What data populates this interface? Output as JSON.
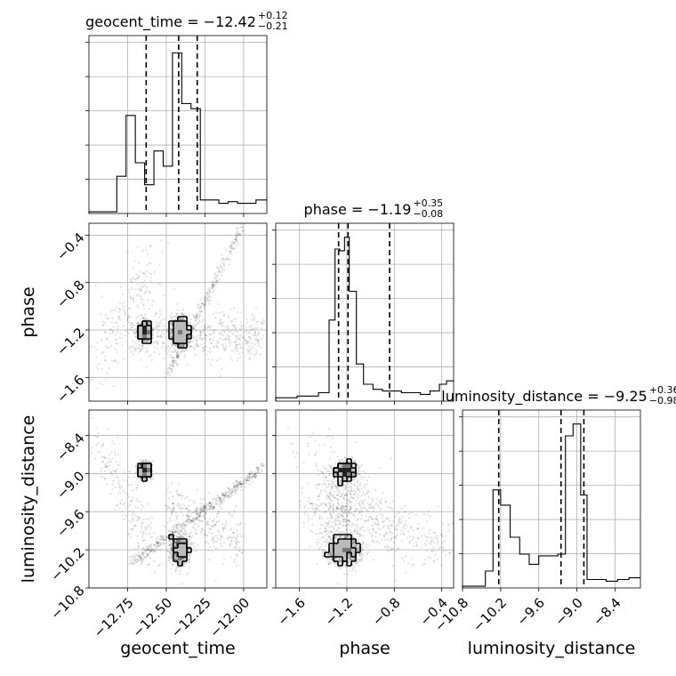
{
  "chart_data": {
    "type": "corner",
    "parameters": [
      "geocent_time",
      "phase",
      "luminosity_distance"
    ],
    "axis_labels": [
      "geocent_time",
      "phase",
      "luminosity_distance"
    ],
    "titles": [
      {
        "param": "geocent_time",
        "text": "geocent_time = −12.42",
        "plus": "+0.12",
        "minus": "−0.21"
      },
      {
        "param": "phase",
        "text": "phase = −1.19",
        "plus": "+0.35",
        "minus": "−0.08"
      },
      {
        "param": "luminosity_distance",
        "text": "luminosity_distance = −9.25",
        "plus": "+0.36",
        "minus": "−0.98"
      }
    ],
    "ranges": {
      "geocent_time": [
        -13.0,
        -11.85
      ],
      "phase": [
        -1.8,
        -0.3
      ],
      "luminosity_distance": [
        -10.8,
        -8.0
      ]
    },
    "ticks": {
      "geocent_time": [
        -12.75,
        -12.5,
        -12.25,
        -12.0
      ],
      "phase": [
        -1.6,
        -1.2,
        -0.8,
        -0.4
      ],
      "luminosity_distance": [
        -10.8,
        -10.2,
        -9.6,
        -9.0,
        -8.4
      ]
    },
    "tick_labels": {
      "geocent_time": [
        "−12.75",
        "−12.50",
        "−12.25",
        "−12.00"
      ],
      "phase": [
        "−1.6",
        "−1.2",
        "−0.8",
        "−0.4"
      ],
      "luminosity_distance": [
        "−10.8",
        "−10.2",
        "−9.6",
        "−9.0",
        "−8.4"
      ]
    },
    "quantiles": {
      "geocent_time": [
        -12.63,
        -12.42,
        -12.3
      ],
      "phase": [
        -1.27,
        -1.19,
        -0.84
      ],
      "luminosity_distance": [
        -10.23,
        -9.25,
        -8.89
      ]
    },
    "histograms": {
      "geocent_time": {
        "edges": [
          -13.0,
          -12.94,
          -12.88,
          -12.82,
          -12.76,
          -12.7,
          -12.64,
          -12.58,
          -12.52,
          -12.46,
          -12.4,
          -12.34,
          -12.28,
          -12.22,
          -12.16,
          -12.1,
          -12.04,
          -11.98,
          -11.92,
          -11.85
        ],
        "counts": [
          0.01,
          0.01,
          0.01,
          0.22,
          0.58,
          0.3,
          0.17,
          0.37,
          0.28,
          0.95,
          0.65,
          0.62,
          0.08,
          0.08,
          0.06,
          0.07,
          0.06,
          0.06,
          0.08
        ]
      },
      "phase": {
        "edges": [
          -1.8,
          -1.71,
          -1.62,
          -1.53,
          -1.44,
          -1.35,
          -1.3,
          -1.26,
          -1.22,
          -1.18,
          -1.12,
          -1.06,
          -0.98,
          -0.9,
          -0.82,
          -0.74,
          -0.66,
          -0.58,
          -0.5,
          -0.42,
          -0.36,
          -0.3
        ],
        "counts": [
          0.02,
          0.02,
          0.03,
          0.03,
          0.05,
          0.48,
          0.9,
          0.89,
          0.97,
          0.65,
          0.22,
          0.1,
          0.07,
          0.06,
          0.06,
          0.05,
          0.05,
          0.04,
          0.06,
          0.1,
          0.12
        ]
      },
      "luminosity_distance": {
        "edges": [
          -10.8,
          -10.62,
          -10.44,
          -10.32,
          -10.2,
          -10.05,
          -9.9,
          -9.75,
          -9.6,
          -9.45,
          -9.3,
          -9.18,
          -9.06,
          -8.94,
          -8.84,
          -8.72,
          -8.54,
          -8.36,
          -8.18,
          -8.0
        ],
        "counts": [
          0.01,
          0.01,
          0.1,
          0.58,
          0.49,
          0.3,
          0.2,
          0.14,
          0.19,
          0.19,
          0.2,
          0.9,
          0.97,
          0.55,
          0.05,
          0.05,
          0.04,
          0.05,
          0.06
        ]
      }
    },
    "point_density": "bimodal posterior samples with two dense modes and curved low-density arcs",
    "grid": true
  }
}
